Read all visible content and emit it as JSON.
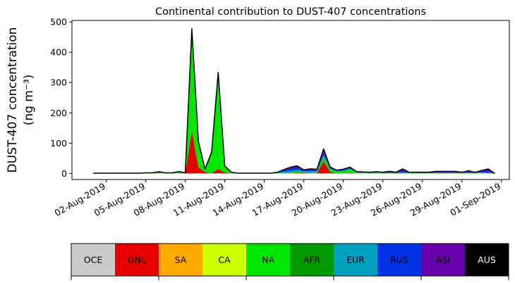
{
  "chart_data": {
    "type": "area",
    "stacked": true,
    "title": "Continental contribution to DUST-407 concentrations",
    "ylabel_line1": "DUST-407 concentration",
    "ylabel_line2": "(ng m⁻³)",
    "xlabel": "",
    "ylim": [
      -20,
      505
    ],
    "xlim_days": [
      -1.6,
      31.6
    ],
    "yticks": [
      0,
      100,
      200,
      300,
      400,
      500
    ],
    "xtick_labels": [
      "02-Aug-2019",
      "05-Aug-2019",
      "08-Aug-2019",
      "11-Aug-2019",
      "14-Aug-2019",
      "17-Aug-2019",
      "20-Aug-2019",
      "23-Aug-2019",
      "26-Aug-2019",
      "29-Aug-2019",
      "01-Sep-2019"
    ],
    "x": [
      "01-Aug-2019 00:00",
      "01-Aug-2019 12:00",
      "02-Aug-2019 00:00",
      "02-Aug-2019 12:00",
      "03-Aug-2019 00:00",
      "03-Aug-2019 12:00",
      "04-Aug-2019 00:00",
      "04-Aug-2019 12:00",
      "05-Aug-2019 00:00",
      "05-Aug-2019 12:00",
      "06-Aug-2019 00:00",
      "06-Aug-2019 12:00",
      "07-Aug-2019 00:00",
      "07-Aug-2019 12:00",
      "08-Aug-2019 00:00",
      "08-Aug-2019 12:00",
      "09-Aug-2019 00:00",
      "09-Aug-2019 12:00",
      "10-Aug-2019 00:00",
      "10-Aug-2019 12:00",
      "11-Aug-2019 00:00",
      "11-Aug-2019 12:00",
      "12-Aug-2019 00:00",
      "12-Aug-2019 12:00",
      "13-Aug-2019 00:00",
      "13-Aug-2019 12:00",
      "14-Aug-2019 00:00",
      "14-Aug-2019 12:00",
      "15-Aug-2019 00:00",
      "15-Aug-2019 12:00",
      "16-Aug-2019 00:00",
      "16-Aug-2019 12:00",
      "17-Aug-2019 00:00",
      "17-Aug-2019 12:00",
      "18-Aug-2019 00:00",
      "18-Aug-2019 12:00",
      "19-Aug-2019 00:00",
      "19-Aug-2019 12:00",
      "20-Aug-2019 00:00",
      "20-Aug-2019 12:00",
      "21-Aug-2019 00:00",
      "21-Aug-2019 12:00",
      "22-Aug-2019 00:00",
      "22-Aug-2019 12:00",
      "23-Aug-2019 00:00",
      "23-Aug-2019 12:00",
      "24-Aug-2019 00:00",
      "24-Aug-2019 12:00",
      "25-Aug-2019 00:00",
      "25-Aug-2019 12:00",
      "26-Aug-2019 00:00",
      "26-Aug-2019 12:00",
      "27-Aug-2019 00:00",
      "27-Aug-2019 12:00",
      "28-Aug-2019 00:00",
      "28-Aug-2019 12:00",
      "29-Aug-2019 00:00",
      "29-Aug-2019 12:00",
      "30-Aug-2019 00:00",
      "30-Aug-2019 12:00",
      "31-Aug-2019 00:00",
      "31-Aug-2019 12:00"
    ],
    "series": [
      {
        "name": "OCE",
        "color": "#cccccc",
        "values": [
          0,
          0,
          0,
          0,
          0,
          0,
          0,
          0,
          0,
          0,
          0,
          0,
          0,
          0,
          0,
          0,
          0,
          0,
          0,
          0,
          0,
          0,
          0,
          0,
          0,
          0,
          0,
          0,
          0,
          0,
          0,
          0,
          0,
          0,
          0,
          0,
          0,
          0,
          0,
          0,
          0,
          0,
          0,
          0,
          0,
          0,
          0,
          0,
          0,
          0,
          0,
          0,
          0,
          0,
          0,
          0,
          0,
          0,
          0,
          0,
          0,
          0
        ]
      },
      {
        "name": "GNL",
        "color": "#e60000",
        "values": [
          0,
          0,
          0,
          0,
          0,
          0,
          0,
          0,
          0,
          0,
          0,
          0,
          0,
          0,
          0,
          140,
          20,
          5,
          0,
          15,
          3,
          0,
          0,
          0,
          0,
          0,
          0,
          0,
          0,
          0,
          0,
          3,
          2,
          0,
          1,
          40,
          5,
          0,
          0,
          2,
          0,
          0,
          0,
          0,
          0,
          0,
          0,
          0,
          0,
          0,
          0,
          0,
          0,
          0,
          0,
          0,
          0,
          0,
          0,
          0,
          0,
          0
        ]
      },
      {
        "name": "SA",
        "color": "#ffaa00",
        "values": [
          0,
          0,
          0,
          0,
          0,
          0,
          0,
          0,
          0,
          0,
          0,
          0,
          0,
          0,
          0,
          0,
          0,
          0,
          0,
          0,
          0,
          0,
          0,
          0,
          0,
          0,
          0,
          0,
          0,
          0,
          0,
          0,
          0,
          0,
          0,
          0,
          0,
          0,
          0,
          0,
          0,
          0,
          0,
          0,
          0,
          0,
          0,
          0,
          0,
          0,
          0,
          0,
          0,
          0,
          0,
          0,
          0,
          0,
          0,
          0,
          0,
          0
        ]
      },
      {
        "name": "CA",
        "color": "#ccff00",
        "values": [
          0,
          0,
          0,
          0,
          0,
          0,
          0,
          0,
          0,
          0,
          0,
          0,
          0,
          0,
          0,
          0,
          0,
          0,
          0,
          0,
          0,
          0,
          0,
          0,
          0,
          0,
          0,
          0,
          0,
          0,
          0,
          0,
          0,
          0,
          0,
          0,
          0,
          0,
          0,
          0,
          0,
          0,
          0,
          0,
          0,
          0,
          0,
          0,
          0,
          0,
          0,
          0,
          0,
          0,
          0,
          0,
          0,
          0,
          0,
          0,
          0,
          0
        ]
      },
      {
        "name": "NA",
        "color": "#00e600",
        "values": [
          1,
          1,
          1,
          1,
          1,
          1,
          1,
          1,
          2,
          2,
          3,
          2,
          2,
          6,
          2,
          338,
          85,
          10,
          70,
          318,
          22,
          4,
          1,
          1,
          1,
          1,
          1,
          1,
          2,
          3,
          3,
          4,
          2,
          3,
          3,
          15,
          8,
          6,
          7,
          12,
          3,
          2,
          1,
          1,
          1,
          1,
          1,
          1,
          1,
          1,
          1,
          1,
          1,
          1,
          1,
          1,
          1,
          1,
          1,
          2,
          2,
          0
        ]
      },
      {
        "name": "AFR",
        "color": "#009900",
        "values": [
          0,
          0,
          0,
          0,
          0,
          0,
          0,
          0,
          0,
          0,
          0,
          0,
          0,
          0,
          0,
          0,
          0,
          0,
          0,
          0,
          0,
          0,
          0,
          0,
          0,
          0,
          0,
          0,
          0,
          0,
          0,
          0,
          0,
          0,
          0,
          0,
          0,
          0,
          0,
          0,
          0,
          0,
          0,
          0,
          0,
          0,
          0,
          0,
          0,
          0,
          0,
          0,
          0,
          0,
          0,
          0,
          0,
          0,
          0,
          0,
          0,
          0
        ]
      },
      {
        "name": "EUR",
        "color": "#00a0c0",
        "values": [
          0,
          0,
          0,
          0,
          0,
          0,
          0,
          0,
          0,
          0,
          0,
          0,
          0,
          0,
          0,
          0,
          0,
          0,
          0,
          0,
          0,
          0,
          0,
          0,
          0,
          0,
          0,
          0,
          0,
          3,
          6,
          5,
          3,
          5,
          3,
          5,
          3,
          2,
          2,
          2,
          1,
          1,
          1,
          2,
          1,
          1,
          1,
          2,
          1,
          1,
          1,
          1,
          1,
          1,
          1,
          1,
          1,
          1,
          1,
          1,
          1,
          0
        ]
      },
      {
        "name": "RUS",
        "color": "#0033e6",
        "values": [
          0,
          0,
          0,
          0,
          0,
          0,
          0,
          0,
          0,
          0,
          0,
          0,
          0,
          0,
          0,
          0,
          0,
          0,
          0,
          0,
          0,
          0,
          0,
          0,
          0,
          0,
          0,
          0,
          0,
          4,
          7,
          8,
          3,
          4,
          3,
          8,
          3,
          1,
          2,
          3,
          1,
          1,
          1,
          2,
          1,
          2,
          1,
          6,
          1,
          1,
          1,
          1,
          2,
          2,
          2,
          2,
          1,
          3,
          1,
          3,
          4,
          0
        ]
      },
      {
        "name": "ASI",
        "color": "#6600aa",
        "values": [
          0,
          0,
          0,
          0,
          0,
          0,
          0,
          0,
          0,
          0,
          3,
          0,
          0,
          0,
          0,
          0,
          0,
          0,
          0,
          0,
          0,
          0,
          0,
          0,
          0,
          0,
          0,
          0,
          2,
          3,
          5,
          5,
          2,
          3,
          4,
          13,
          2,
          2,
          3,
          2,
          1,
          1,
          1,
          1,
          1,
          3,
          1,
          6,
          1,
          1,
          1,
          1,
          3,
          3,
          3,
          3,
          1,
          4,
          1,
          4,
          8,
          0
        ]
      },
      {
        "name": "AUS",
        "color": "#000000",
        "values": [
          0,
          0,
          0,
          0,
          0,
          0,
          0,
          0,
          0,
          0,
          0,
          0,
          0,
          0,
          0,
          0,
          0,
          0,
          0,
          0,
          0,
          0,
          0,
          0,
          0,
          0,
          0,
          0,
          0,
          0,
          0,
          0,
          0,
          0,
          0,
          0,
          0,
          0,
          0,
          0,
          0,
          0,
          0,
          0,
          0,
          0,
          0,
          0,
          0,
          0,
          0,
          0,
          0,
          0,
          0,
          0,
          0,
          0,
          0,
          0,
          0,
          0
        ]
      }
    ],
    "legend_placement": "bottom",
    "grid": false
  },
  "legend": {
    "items": [
      {
        "label": "OCE",
        "color": "#cccccc",
        "text_color": "#000000"
      },
      {
        "label": "GNL",
        "color": "#e60000",
        "text_color": "#000000"
      },
      {
        "label": "SA",
        "color": "#ffaa00",
        "text_color": "#000000"
      },
      {
        "label": "CA",
        "color": "#ccff00",
        "text_color": "#000000"
      },
      {
        "label": "NA",
        "color": "#00e600",
        "text_color": "#000000"
      },
      {
        "label": "AFR",
        "color": "#009900",
        "text_color": "#000000"
      },
      {
        "label": "EUR",
        "color": "#00a0c0",
        "text_color": "#000000"
      },
      {
        "label": "RUS",
        "color": "#0033e6",
        "text_color": "#000000"
      },
      {
        "label": "ASI",
        "color": "#6600aa",
        "text_color": "#000000"
      },
      {
        "label": "AUS",
        "color": "#000000",
        "text_color": "#ffffff"
      }
    ]
  }
}
